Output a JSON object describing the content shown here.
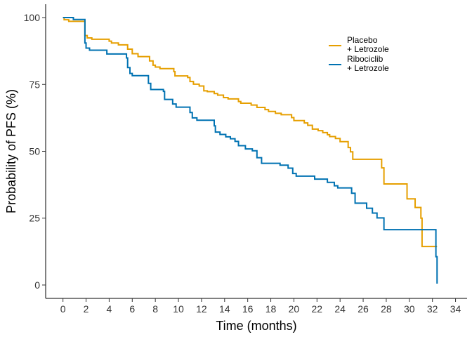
{
  "chart_data": {
    "type": "line",
    "step": true,
    "title": "",
    "xlabel": "Time (months)",
    "ylabel": "Probability of PFS (%)",
    "xlim": [
      -1.5,
      35
    ],
    "ylim": [
      -5,
      105
    ],
    "xticks": [
      0,
      2,
      4,
      6,
      8,
      10,
      12,
      14,
      16,
      18,
      20,
      22,
      24,
      26,
      28,
      30,
      32,
      34
    ],
    "yticks": [
      0,
      25,
      50,
      75,
      100
    ],
    "grid": false,
    "legend_position": "top-right",
    "series": [
      {
        "name": "Placebo + Letrozole",
        "legend_lines": [
          "Placebo",
          "+ Letrozole"
        ],
        "color": "#E69F00",
        "points": [
          [
            0,
            100
          ],
          [
            0.1,
            99.2
          ],
          [
            0.5,
            98.6
          ],
          [
            1.8,
            98.6
          ],
          [
            1.9,
            93.3
          ],
          [
            2.1,
            92.4
          ],
          [
            2.5,
            91.9
          ],
          [
            4.0,
            91.2
          ],
          [
            4.2,
            90.5
          ],
          [
            4.8,
            89.8
          ],
          [
            5.6,
            88.2
          ],
          [
            6.0,
            86.5
          ],
          [
            6.5,
            85.4
          ],
          [
            7.5,
            83.8
          ],
          [
            7.8,
            82.2
          ],
          [
            8.0,
            81.5
          ],
          [
            8.4,
            80.9
          ],
          [
            9.6,
            79.8
          ],
          [
            9.7,
            78.2
          ],
          [
            10.8,
            77.6
          ],
          [
            11.0,
            76.1
          ],
          [
            11.3,
            75.1
          ],
          [
            11.8,
            74.4
          ],
          [
            12.2,
            72.6
          ],
          [
            12.5,
            72.3
          ],
          [
            13.1,
            71.6
          ],
          [
            13.4,
            71.0
          ],
          [
            13.9,
            70.1
          ],
          [
            14.3,
            69.6
          ],
          [
            15.2,
            68.6
          ],
          [
            15.4,
            68.0
          ],
          [
            16.3,
            67.3
          ],
          [
            16.8,
            66.4
          ],
          [
            17.5,
            65.6
          ],
          [
            17.8,
            64.9
          ],
          [
            18.4,
            64.2
          ],
          [
            18.9,
            63.7
          ],
          [
            19.8,
            62.6
          ],
          [
            20.0,
            61.5
          ],
          [
            20.9,
            60.6
          ],
          [
            21.2,
            59.7
          ],
          [
            21.6,
            58.3
          ],
          [
            22.1,
            57.7
          ],
          [
            22.5,
            57.0
          ],
          [
            22.9,
            56.2
          ],
          [
            23.1,
            55.5
          ],
          [
            23.6,
            54.8
          ],
          [
            24.0,
            53.6
          ],
          [
            24.7,
            51.4
          ],
          [
            24.9,
            49.8
          ],
          [
            25.1,
            47.0
          ],
          [
            27.6,
            43.8
          ],
          [
            27.8,
            37.8
          ],
          [
            29.8,
            32.2
          ],
          [
            30.5,
            29.0
          ],
          [
            31.0,
            25.0
          ],
          [
            31.1,
            14.4
          ],
          [
            32.4,
            14.4
          ]
        ]
      },
      {
        "name": "Ribociclib + Letrozole",
        "legend_lines": [
          "Ribociclib",
          "+ Letrozole"
        ],
        "color": "#0072B2",
        "points": [
          [
            0,
            100
          ],
          [
            0.9,
            99.3
          ],
          [
            1.9,
            90.5
          ],
          [
            2.0,
            88.6
          ],
          [
            2.3,
            87.8
          ],
          [
            3.8,
            86.4
          ],
          [
            5.5,
            84.9
          ],
          [
            5.6,
            81.3
          ],
          [
            5.8,
            79.1
          ],
          [
            6.0,
            78.3
          ],
          [
            7.4,
            75.4
          ],
          [
            7.6,
            73.1
          ],
          [
            8.7,
            72.4
          ],
          [
            8.8,
            69.4
          ],
          [
            9.5,
            67.7
          ],
          [
            9.8,
            66.5
          ],
          [
            11.0,
            64.5
          ],
          [
            11.2,
            62.5
          ],
          [
            11.6,
            61.6
          ],
          [
            13.1,
            59.5
          ],
          [
            13.2,
            57.2
          ],
          [
            13.6,
            56.3
          ],
          [
            14.1,
            55.4
          ],
          [
            14.5,
            54.7
          ],
          [
            14.9,
            53.7
          ],
          [
            15.2,
            52.1
          ],
          [
            15.8,
            50.9
          ],
          [
            16.4,
            50.2
          ],
          [
            16.8,
            47.6
          ],
          [
            17.2,
            45.5
          ],
          [
            18.8,
            44.8
          ],
          [
            19.5,
            43.7
          ],
          [
            19.9,
            41.7
          ],
          [
            20.2,
            40.7
          ],
          [
            21.8,
            39.6
          ],
          [
            22.9,
            38.4
          ],
          [
            23.5,
            37.1
          ],
          [
            23.8,
            36.3
          ],
          [
            25.0,
            34.3
          ],
          [
            25.3,
            30.6
          ],
          [
            26.3,
            28.7
          ],
          [
            26.8,
            26.9
          ],
          [
            27.2,
            25.1
          ],
          [
            27.8,
            20.7
          ],
          [
            32.2,
            20.7
          ],
          [
            32.3,
            10.6
          ],
          [
            32.4,
            0.5
          ]
        ]
      }
    ]
  }
}
